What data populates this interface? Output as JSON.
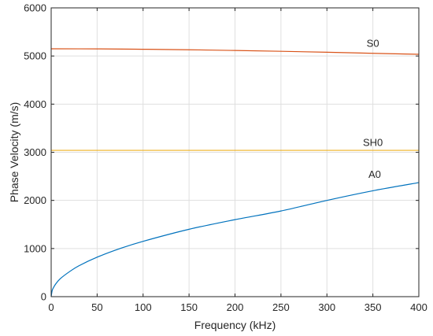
{
  "chart_data": {
    "type": "line",
    "xlabel": "Frequency (kHz)",
    "ylabel": "Phase Velocity (m/s)",
    "xlim": [
      0,
      400
    ],
    "ylim": [
      0,
      6000
    ],
    "grid": true,
    "x_ticks": [
      0,
      50,
      100,
      150,
      200,
      250,
      300,
      350,
      400
    ],
    "y_ticks": [
      0,
      1000,
      2000,
      3000,
      4000,
      5000,
      6000
    ],
    "series": [
      {
        "name": "S0",
        "color": "#D95319",
        "label_at": [
          350,
          5190
        ],
        "x": [
          0,
          50,
          100,
          150,
          200,
          250,
          300,
          350,
          400
        ],
        "y": [
          5150,
          5148,
          5140,
          5130,
          5115,
          5098,
          5078,
          5056,
          5035
        ]
      },
      {
        "name": "SH0",
        "color": "#EDB120",
        "label_at": [
          350,
          3130
        ],
        "x": [
          0,
          400
        ],
        "y": [
          3040,
          3040
        ]
      },
      {
        "name": "A0",
        "color": "#0072BD",
        "label_at": [
          352,
          2470
        ],
        "x": [
          0,
          1,
          2,
          5,
          10,
          20,
          30,
          50,
          75,
          100,
          150,
          200,
          250,
          300,
          350,
          400
        ],
        "y": [
          0,
          120,
          170,
          265,
          375,
          520,
          640,
          820,
          1000,
          1150,
          1400,
          1600,
          1780,
          2000,
          2200,
          2370
        ]
      }
    ]
  }
}
